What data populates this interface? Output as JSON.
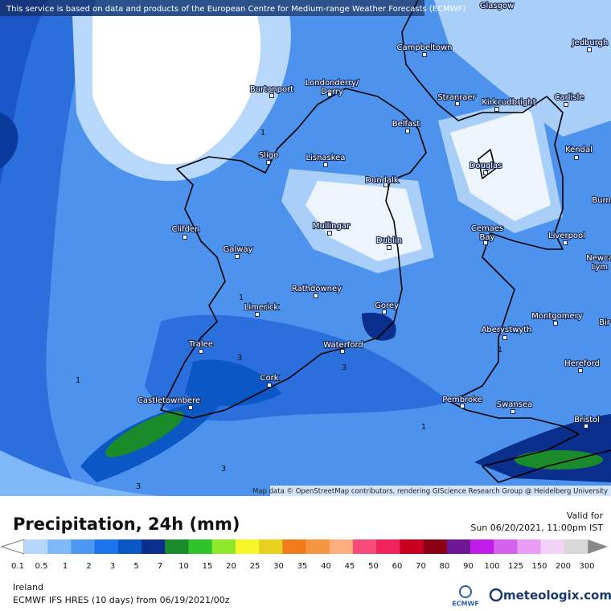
{
  "banner": "This service is based on data and products of the European Centre for Medium-range Weather Forecasts (ECMWF)",
  "map": {
    "cities": [
      [
        "Glasgow"
      ],
      [
        "Campbeltown"
      ],
      [
        "Jedburgh"
      ],
      [
        "Burtonport"
      ],
      [
        "Londonderry/",
        "Derry"
      ],
      [
        "Stranraer"
      ],
      [
        "Kirkcudbright"
      ],
      [
        "Carlisle"
      ],
      [
        "Belfast"
      ],
      [
        "Kendal"
      ],
      [
        "Sligo"
      ],
      [
        "Lisnaskea"
      ],
      [
        "Dundalk"
      ],
      [
        "Douglas"
      ],
      [
        "Burn"
      ],
      [
        "Clifden"
      ],
      [
        "Mullingar"
      ],
      [
        "Cemaes",
        "Bay"
      ],
      [
        "Liverpool"
      ],
      [
        "Dublin"
      ],
      [
        "Galway"
      ],
      [
        "Newca",
        "Lym"
      ],
      [
        "Rathdowney"
      ],
      [
        "Limerick"
      ],
      [
        "Gorey"
      ],
      [
        "Montgomery"
      ],
      [
        "Bir"
      ],
      [
        "Aberystwyth"
      ],
      [
        "Tralee"
      ],
      [
        "Waterford"
      ],
      [
        "Hereford"
      ],
      [
        "Cork"
      ],
      [
        "Pembroke"
      ],
      [
        "Castletownbere"
      ],
      [
        "Swansea"
      ],
      [
        "Bristol"
      ]
    ],
    "contour_labels": [
      1,
      1,
      1,
      1,
      1,
      3,
      3,
      3,
      3
    ],
    "attribution": "Map data © OpenStreetMap contributors, rendering GIScience Research Group @ Heidelberg University"
  },
  "legend": {
    "title": "Precipitation, 24h (mm)",
    "valid_label": "Valid for",
    "valid_time": "Sun 06/20/2021, 11:00pm IST",
    "colors": [
      "#b4d7fb",
      "#7fb8f8",
      "#4c97f2",
      "#1d74ea",
      "#0b57c6",
      "#0a2f8c",
      "#1a8a2a",
      "#2fc42b",
      "#8ee82a",
      "#f5f52a",
      "#e6d21c",
      "#f07b18",
      "#f59540",
      "#fdae7c",
      "#f7497a",
      "#f0235e",
      "#c8001e",
      "#8c0015",
      "#6c1894",
      "#c01ee8",
      "#d462ee",
      "#e89cf4",
      "#f2d2f8",
      "#d8d8d8"
    ],
    "ticks": [
      0.1,
      0.5,
      1,
      2,
      3,
      5,
      7,
      10,
      15,
      20,
      25,
      30,
      35,
      40,
      45,
      50,
      60,
      70,
      80,
      90,
      100,
      125,
      150,
      200,
      300
    ]
  },
  "footer": {
    "region": "Ireland",
    "model": "ECMWF IFS HRES (10 days) from 06/19/2021/00z",
    "logo": "ECMWF",
    "brand": "meteologix.com"
  }
}
